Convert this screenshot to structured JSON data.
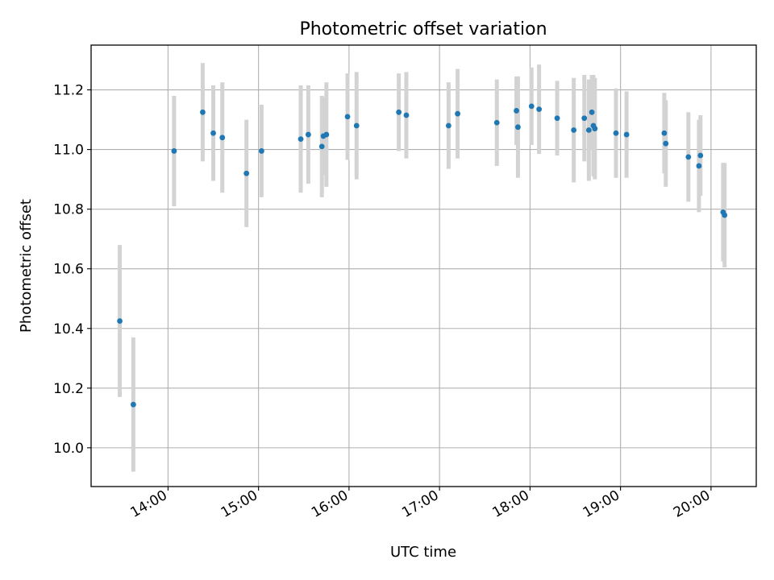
{
  "chart_data": {
    "type": "scatter",
    "title": "Photometric offset variation",
    "xlabel": "UTC time",
    "ylabel": "Photometric offset",
    "xlim": [
      "13:09",
      "20:30"
    ],
    "ylim": [
      9.87,
      11.35
    ],
    "grid": true,
    "x_ticks": [
      "14:00",
      "15:00",
      "16:00",
      "17:00",
      "18:00",
      "19:00",
      "20:00"
    ],
    "y_ticks": [
      "10.0",
      "10.2",
      "10.4",
      "10.6",
      "10.8",
      "11.0",
      "11.2"
    ],
    "colors": {
      "point": "#1f77b4",
      "errorbar": "#d3d3d3",
      "grid": "#b0b0b0"
    },
    "series": [
      {
        "x": [
          "13:28",
          "13:37",
          "14:04",
          "14:23",
          "14:30",
          "14:36",
          "14:52",
          "15:02",
          "15:28",
          "15:33",
          "15:42",
          "15:43",
          "15:45",
          "15:59",
          "16:05",
          "16:33",
          "16:38",
          "17:06",
          "17:12",
          "17:38",
          "17:51",
          "17:52",
          "18:01",
          "18:06",
          "18:18",
          "18:29",
          "18:36",
          "18:39",
          "18:41",
          "18:42",
          "18:43",
          "18:57",
          "19:04",
          "19:29",
          "19:30",
          "19:45",
          "19:52",
          "19:53",
          "20:08",
          "20:09"
        ],
        "y": [
          10.425,
          10.145,
          10.995,
          11.125,
          11.055,
          11.04,
          10.92,
          10.995,
          11.035,
          11.05,
          11.01,
          11.045,
          11.05,
          11.11,
          11.08,
          11.125,
          11.115,
          11.08,
          11.12,
          11.09,
          11.13,
          11.075,
          11.145,
          11.135,
          11.105,
          11.065,
          11.105,
          11.065,
          11.125,
          11.08,
          11.07,
          11.055,
          11.05,
          11.055,
          11.02,
          10.975,
          10.945,
          10.98,
          10.79,
          10.78
        ],
        "yerr": [
          0.255,
          0.225,
          0.185,
          0.165,
          0.16,
          0.185,
          0.18,
          0.155,
          0.18,
          0.165,
          0.17,
          0.13,
          0.175,
          0.145,
          0.18,
          0.13,
          0.145,
          0.145,
          0.15,
          0.145,
          0.115,
          0.17,
          0.13,
          0.15,
          0.125,
          0.175,
          0.145,
          0.17,
          0.125,
          0.17,
          0.17,
          0.15,
          0.145,
          0.135,
          0.145,
          0.15,
          0.155,
          0.135,
          0.165,
          0.175
        ]
      }
    ]
  }
}
